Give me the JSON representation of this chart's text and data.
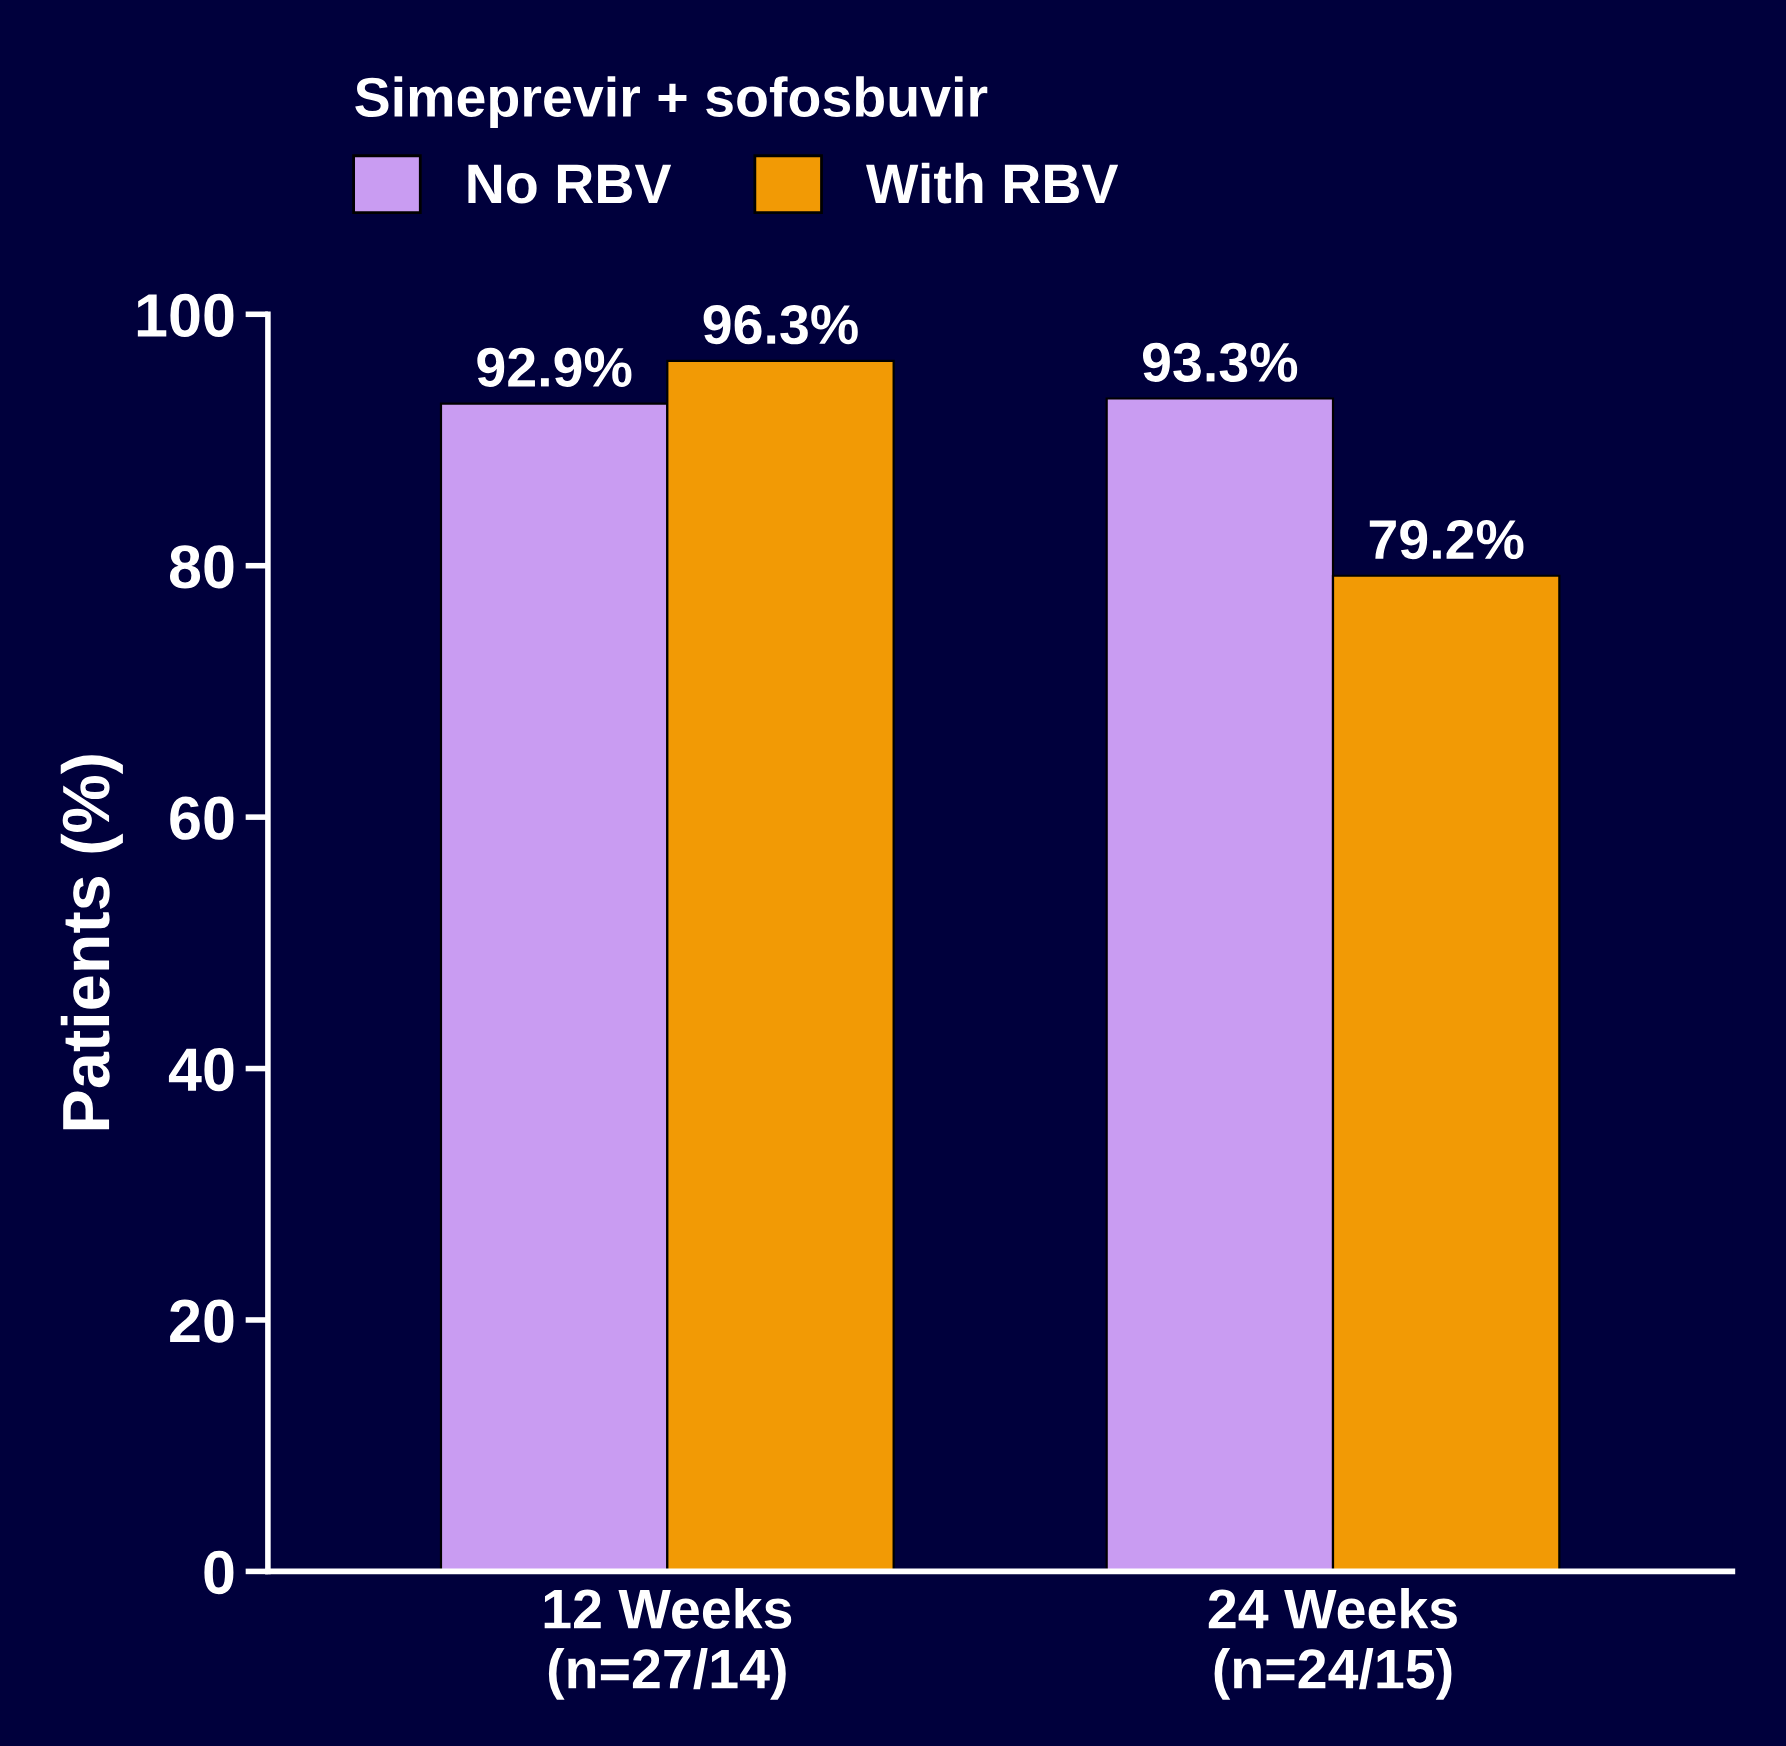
{
  "chart_data": {
    "type": "bar",
    "ylabel": "Patients (%)",
    "legend_title": "Simeprevir + sofosbuvir",
    "legend": "top left",
    "grid": false,
    "categories": [
      "12 Weeks\n(n=27/14)",
      "24 Weeks\n(n=24/15)"
    ],
    "ylim": [
      0,
      100
    ],
    "yticks": [
      0,
      20,
      40,
      60,
      80,
      100
    ],
    "series": [
      {
        "name": "No RBV",
        "color": "#c99cf2",
        "values": [
          92.9,
          93.3
        ],
        "value_labels": [
          "92.9%",
          "93.3%"
        ]
      },
      {
        "name": "With RBV",
        "color": "#f29a05",
        "values": [
          96.3,
          79.2
        ],
        "value_labels": [
          "96.3%",
          "79.2%"
        ]
      }
    ]
  }
}
